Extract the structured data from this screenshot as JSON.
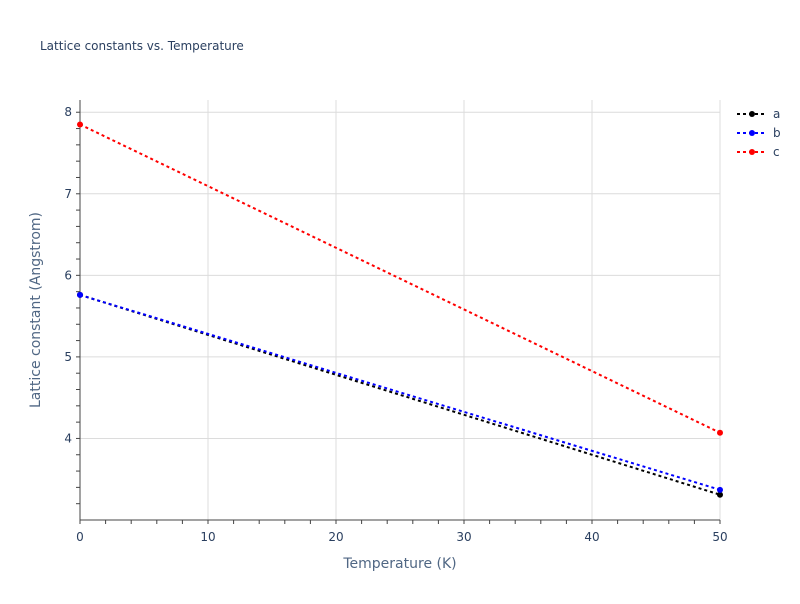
{
  "chart_data": {
    "type": "line",
    "title": "Lattice constants vs. Temperature",
    "xlabel": "Temperature (K)",
    "ylabel": "Lattice constant (Angstrom)",
    "xlim": [
      0,
      50
    ],
    "ylim": [
      3.0,
      8.15
    ],
    "x_ticks": [
      0,
      10,
      20,
      30,
      40,
      50
    ],
    "y_ticks": [
      4,
      5,
      6,
      7,
      8
    ],
    "grid": true,
    "legend_position": "top-right",
    "series": [
      {
        "name": "a",
        "color": "#000000",
        "x": [
          0,
          50
        ],
        "y": [
          5.76,
          3.31
        ]
      },
      {
        "name": "b",
        "color": "#0000ff",
        "x": [
          0,
          50
        ],
        "y": [
          5.76,
          3.37
        ]
      },
      {
        "name": "c",
        "color": "#ff0000",
        "x": [
          0,
          50
        ],
        "y": [
          7.85,
          4.07
        ]
      }
    ]
  }
}
